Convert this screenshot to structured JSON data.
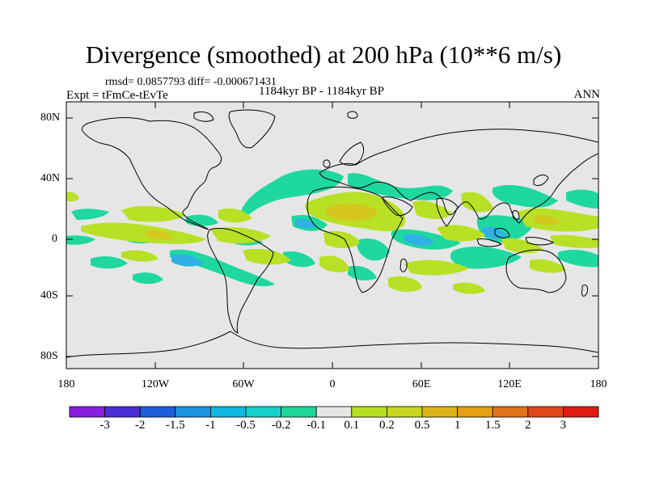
{
  "title": "Divergence (smoothed) at 200 hPa (10**6 m/s)",
  "stats": "rmsd= 0.0857793 diff= -0.000671431",
  "experiment": "Expt = tFmCe-tEvTe",
  "period": "1184kyr BP - 1184kyr BP",
  "season": "ANN",
  "lat_labels": [
    "80N",
    "40N",
    "0",
    "40S",
    "80S"
  ],
  "lon_labels": [
    "180",
    "120W",
    "60W",
    "0",
    "60E",
    "120E",
    "180"
  ],
  "colorbar": {
    "labels": [
      "-3",
      "-2",
      "-1.5",
      "-1",
      "-0.5",
      "-0.2",
      "-0.1",
      "0.1",
      "0.2",
      "0.5",
      "1",
      "1.5",
      "2",
      "3"
    ],
    "colors": [
      "#8a1ee0",
      "#4a2ed8",
      "#1e5edc",
      "#1a94e0",
      "#10b8e0",
      "#14d0c8",
      "#20d49a",
      "#e6e6e6",
      "#b4e020",
      "#c8d820",
      "#dcb418",
      "#e4a010",
      "#e07418",
      "#e04818",
      "#e01c10"
    ]
  },
  "colors": {
    "ocean": "#e6e6e6",
    "coast": "#000000",
    "pos_weak": "#b8e024",
    "pos_mid": "#d4c81e",
    "neg_weak": "#1ed8a0",
    "neg_mid": "#20c8d4",
    "neg_strong": "#30b0e4"
  }
}
